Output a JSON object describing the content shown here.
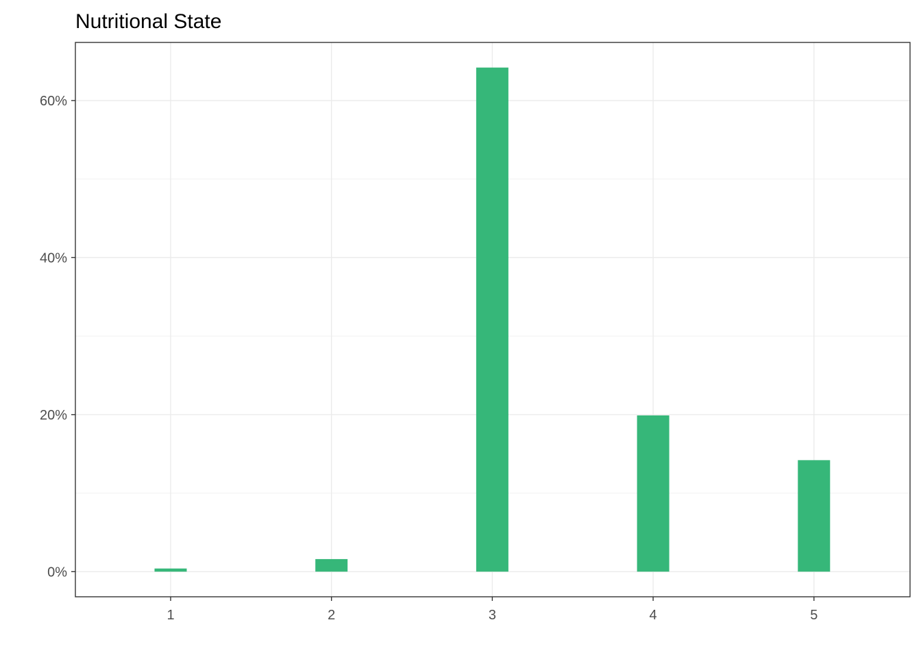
{
  "chart_data": {
    "type": "bar",
    "title": "Nutritional State",
    "xlabel": "",
    "ylabel": "",
    "categories": [
      "1",
      "2",
      "3",
      "4",
      "5"
    ],
    "values": [
      0.4,
      1.6,
      64.2,
      19.9,
      14.2
    ],
    "value_unit": "percent",
    "ylim": [
      -3.2,
      67.4
    ],
    "yticks": [
      0,
      20,
      40,
      60
    ],
    "ytick_labels": [
      "0%",
      "20%",
      "40%",
      "60%"
    ],
    "bar_color": "#36B779",
    "grid": true,
    "legend": "none"
  }
}
